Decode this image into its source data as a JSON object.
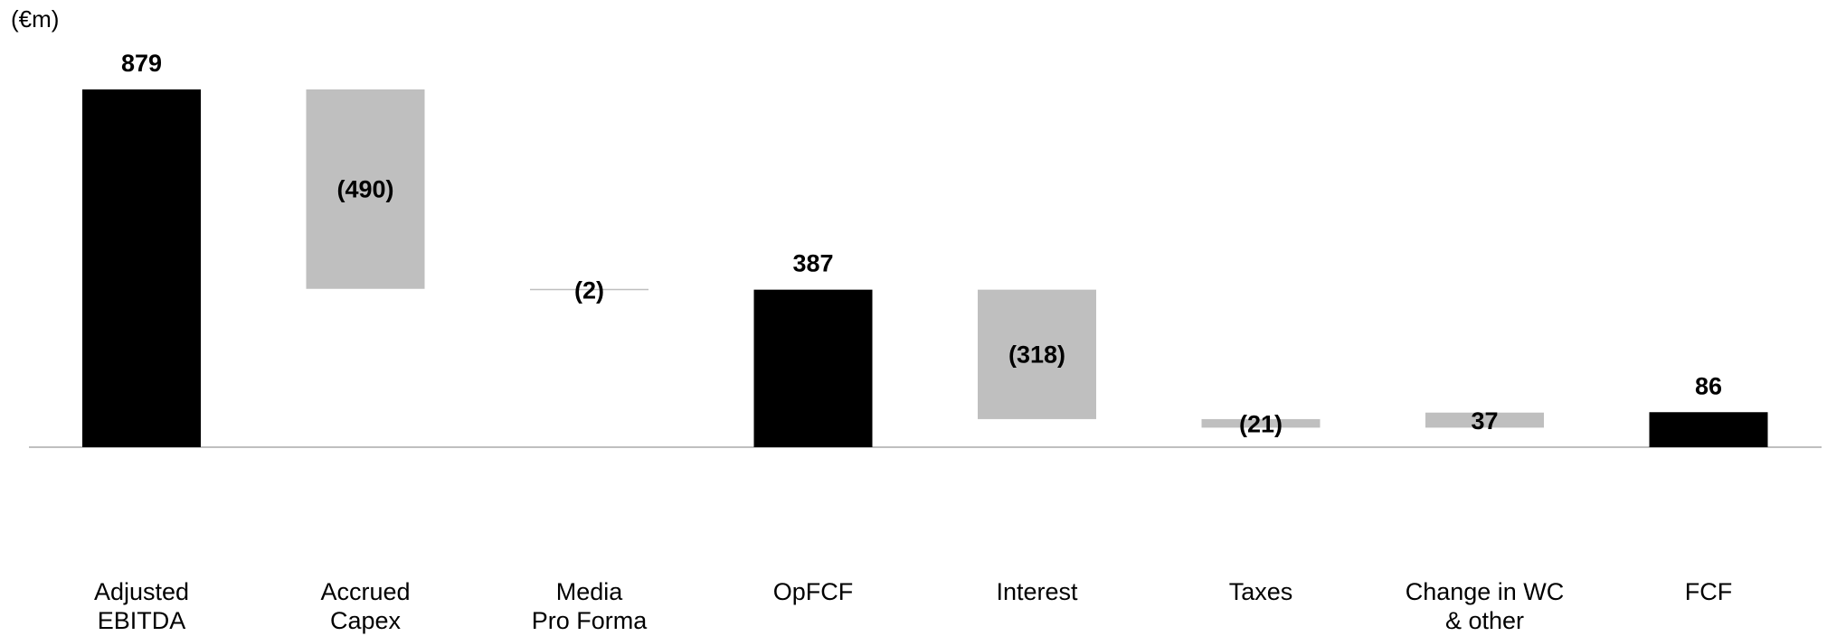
{
  "chart_data": {
    "type": "waterfall",
    "unit_label": "(€m)",
    "categories": [
      [
        "Adjusted",
        "EBITDA"
      ],
      [
        "Accrued",
        "Capex"
      ],
      [
        "Media",
        "Pro Forma"
      ],
      [
        "OpFCF"
      ],
      [
        "Interest"
      ],
      [
        "Taxes"
      ],
      [
        "Change in WC",
        "& other"
      ],
      [
        "FCF"
      ]
    ],
    "bars": [
      {
        "kind": "total",
        "value": 879,
        "label": "879"
      },
      {
        "kind": "delta",
        "value": -490,
        "label": "(490)"
      },
      {
        "kind": "delta",
        "value": -2,
        "label": "(2)"
      },
      {
        "kind": "total",
        "value": 387,
        "label": "387"
      },
      {
        "kind": "delta",
        "value": -318,
        "label": "(318)"
      },
      {
        "kind": "delta",
        "value": -21,
        "label": "(21)"
      },
      {
        "kind": "delta",
        "value": 37,
        "label": "37"
      },
      {
        "kind": "total",
        "value": 86,
        "label": "86"
      }
    ],
    "ylim": [
      0,
      879
    ],
    "grid": false,
    "colors": {
      "total": "#000000",
      "delta": "#bfbfbf",
      "axis": "#bfbfbf"
    }
  }
}
